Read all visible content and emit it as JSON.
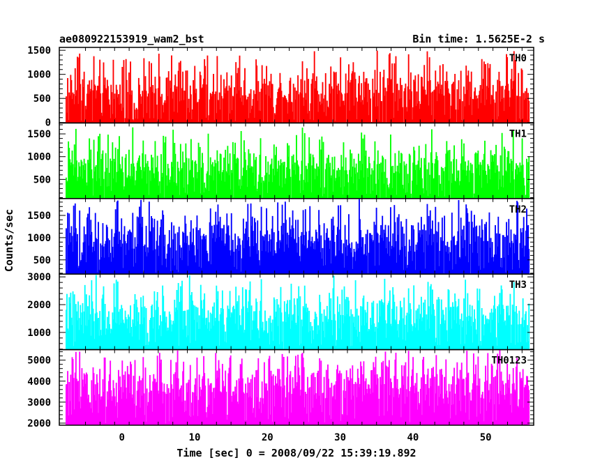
{
  "chart_data": {
    "type": "line",
    "title_left": "ae080922153919_wam2_bst",
    "title_right": "Bin time: 1.5625E-2 s",
    "xlabel": "Time [sec] 0 = 2008/09/22 15:39:19.892",
    "ylabel": "Counts/sec",
    "x_range": [
      -8.6,
      56.6
    ],
    "x_ticks": [
      0,
      10,
      20,
      30,
      40,
      50
    ],
    "x_tick_labels": [
      "0",
      "10",
      "20",
      "30",
      "40",
      "50"
    ],
    "data_x_range": [
      -7.7,
      56.0
    ],
    "bin_time_sec": 0.015625,
    "panels": [
      {
        "name": "TH0",
        "color": "#ff0000",
        "ylim": [
          -10,
          1560
        ],
        "y_ticks": [
          0,
          500,
          1000,
          1500
        ],
        "y_tick_labels": [
          "0",
          "500",
          "1000",
          "1500"
        ],
        "baseline": 650,
        "typical_low": 100,
        "typical_high": 1150,
        "peak_max": 1500,
        "trough_min": 0
      },
      {
        "name": "TH1",
        "color": "#00ff00",
        "ylim": [
          80,
          1740
        ],
        "y_ticks": [
          500,
          1000,
          1500
        ],
        "y_tick_labels": [
          "500",
          "1000",
          "1500"
        ],
        "baseline": 750,
        "typical_low": 200,
        "typical_high": 1200,
        "peak_max": 1700,
        "trough_min": 80
      },
      {
        "name": "TH2",
        "color": "#0000ff",
        "ylim": [
          180,
          1880
        ],
        "y_ticks": [
          500,
          1000,
          1500
        ],
        "y_tick_labels": [
          "500",
          "1000",
          "1500"
        ],
        "baseline": 950,
        "typical_low": 380,
        "typical_high": 1500,
        "peak_max": 1880,
        "trough_min": 180
      },
      {
        "name": "TH3",
        "color": "#00ffff",
        "ylim": [
          380,
          3100
        ],
        "y_ticks": [
          1000,
          2000,
          3000
        ],
        "y_tick_labels": [
          "1000",
          "2000",
          "3000"
        ],
        "baseline": 1600,
        "typical_low": 700,
        "typical_high": 2400,
        "peak_max": 3100,
        "trough_min": 500
      },
      {
        "name": "TH0123",
        "color": "#ff00ff",
        "ylim": [
          1900,
          5500
        ],
        "y_ticks": [
          2000,
          3000,
          4000,
          5000
        ],
        "y_tick_labels": [
          "2000",
          "3000",
          "4000",
          "5000"
        ],
        "baseline": 3800,
        "typical_low": 2500,
        "typical_high": 4900,
        "peak_max": 5450,
        "trough_min": 1950
      }
    ]
  }
}
